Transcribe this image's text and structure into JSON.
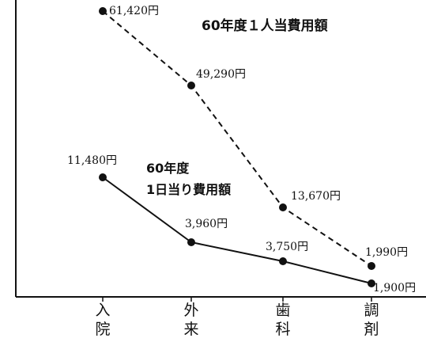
{
  "chart_data": {
    "type": "line",
    "categories": [
      "入院",
      "外来",
      "歯科",
      "調剤"
    ],
    "category_chars": [
      [
        "入",
        "院"
      ],
      [
        "外",
        "来"
      ],
      [
        "歯",
        "科"
      ],
      [
        "調",
        "剤"
      ]
    ],
    "series": [
      {
        "name": "60年度１人当費用額",
        "style": "dashed",
        "values": [
          61420,
          49290,
          13670,
          1990
        ],
        "labels": [
          "61,420円",
          "49,290円",
          "13,670円",
          "1,990円"
        ]
      },
      {
        "name": "60年度 1日当り費用額",
        "style": "solid",
        "values": [
          11480,
          3960,
          3750,
          1900
        ],
        "labels": [
          "11,480円",
          "3,960円",
          "3,750円",
          "1,900円"
        ]
      }
    ],
    "title_dashed": "60年度１人当費用額",
    "title_solid_lines": [
      "60年度",
      "1日当り費用額"
    ],
    "line_color": "#111111"
  }
}
